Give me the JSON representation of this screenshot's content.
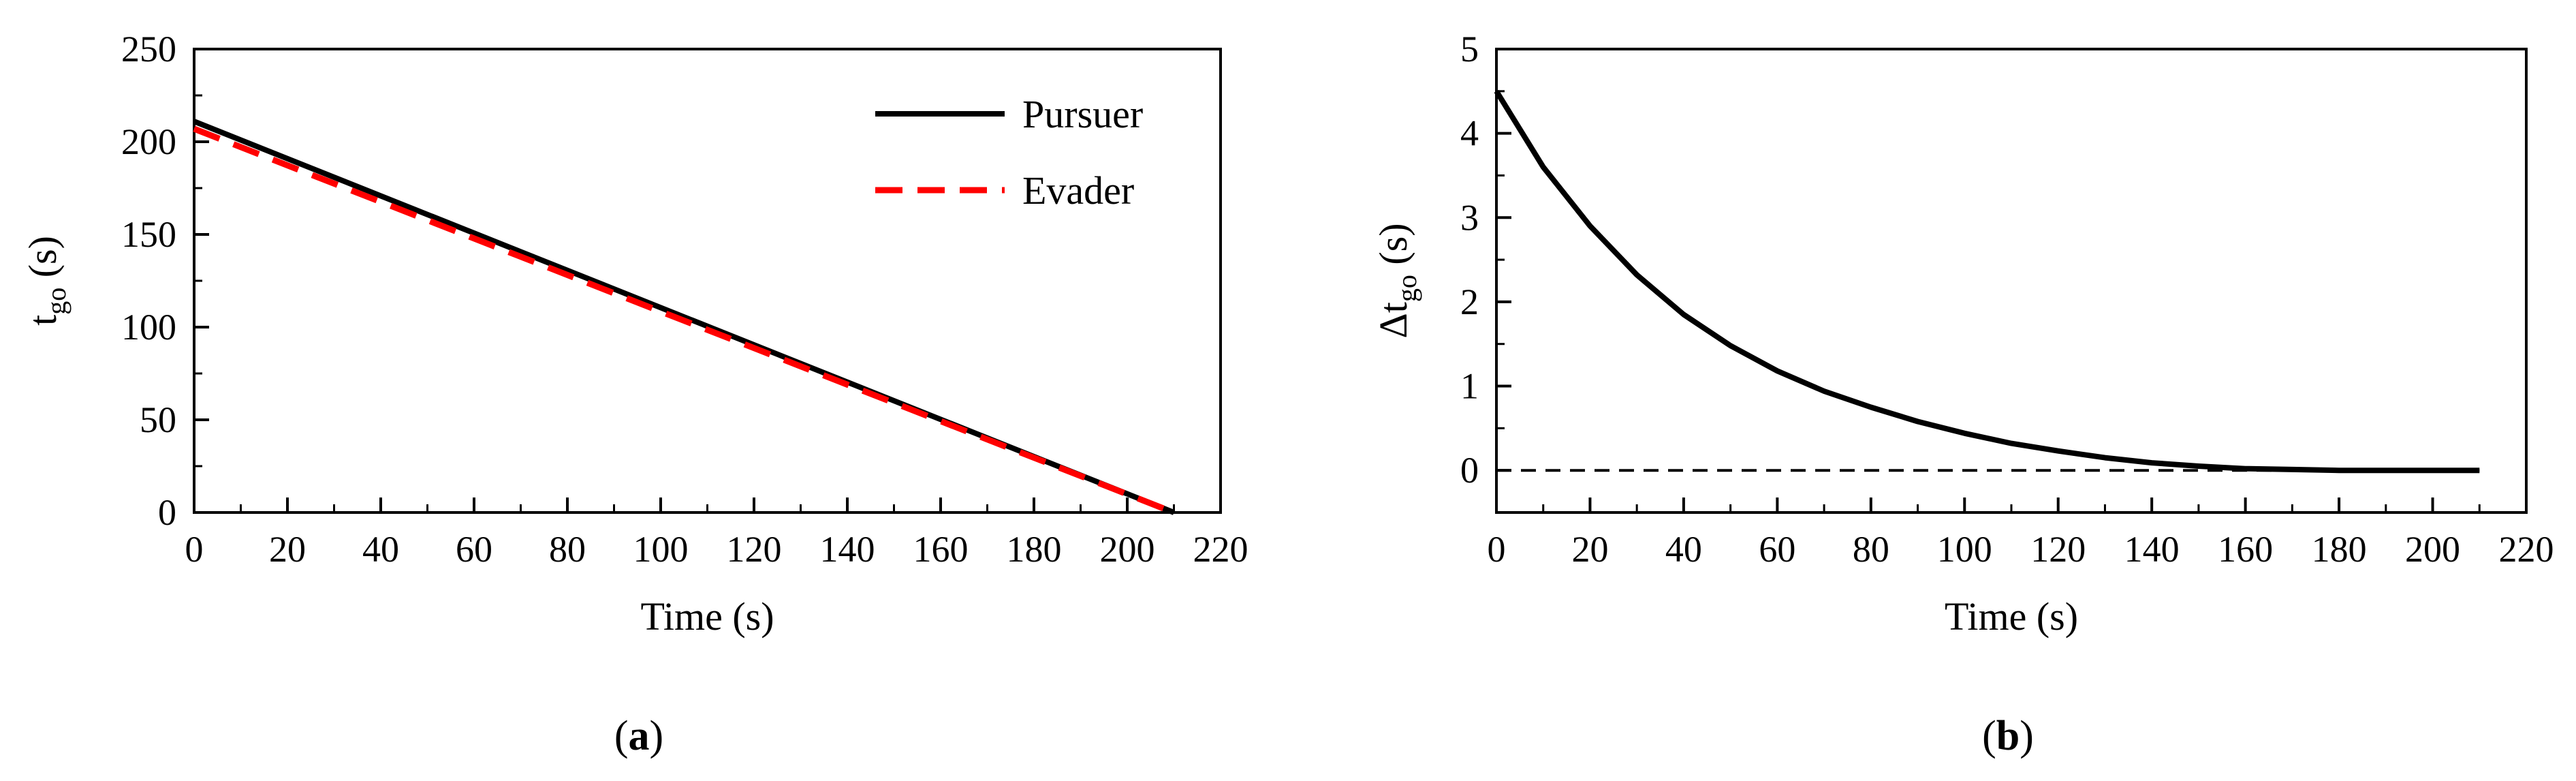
{
  "chart_data": [
    {
      "type": "line",
      "caption_open": "(",
      "caption_letter": "a",
      "caption_close": ")",
      "xlabel": "Time (s)",
      "ylabel_main": "t",
      "ylabel_sub": "go",
      "ylabel_unit": " (s)",
      "xlim": [
        0,
        220
      ],
      "ylim": [
        0,
        250
      ],
      "xticks": [
        0,
        20,
        40,
        60,
        80,
        100,
        120,
        140,
        160,
        180,
        200,
        220
      ],
      "yticks": [
        0,
        50,
        100,
        150,
        200,
        250
      ],
      "legend_position": "top-right",
      "series": [
        {
          "name": "Pursuer",
          "color": "#000000",
          "style": "solid",
          "x": [
            0,
            210
          ],
          "y": [
            211,
            0
          ]
        },
        {
          "name": "Evader",
          "color": "#ff0000",
          "style": "dashed",
          "x": [
            0,
            210
          ],
          "y": [
            207,
            0
          ]
        }
      ]
    },
    {
      "type": "line",
      "caption_open": "(",
      "caption_letter": "b",
      "caption_close": ")",
      "xlabel": "Time (s)",
      "ylabel_main": "Δt",
      "ylabel_sub": "go",
      "ylabel_unit": " (s)",
      "xlim": [
        0,
        220
      ],
      "ylim": [
        -0.5,
        5
      ],
      "xticks": [
        0,
        20,
        40,
        60,
        80,
        100,
        120,
        140,
        160,
        180,
        200,
        220
      ],
      "yticks": [
        0,
        1,
        2,
        3,
        4,
        5
      ],
      "series": [
        {
          "color": "#000000",
          "style": "solid",
          "x": [
            0,
            10,
            20,
            30,
            40,
            50,
            60,
            70,
            80,
            90,
            100,
            110,
            120,
            130,
            140,
            150,
            160,
            170,
            180,
            190,
            200,
            210
          ],
          "y": [
            4.5,
            3.6,
            2.9,
            2.32,
            1.85,
            1.48,
            1.18,
            0.94,
            0.75,
            0.58,
            0.44,
            0.32,
            0.23,
            0.15,
            0.09,
            0.05,
            0.02,
            0.01,
            0.0,
            0.0,
            0.0,
            0.0
          ]
        },
        {
          "color": "#000000",
          "style": "dashed",
          "thin": true,
          "x": [
            0,
            210
          ],
          "y": [
            0,
            0
          ]
        }
      ]
    }
  ]
}
